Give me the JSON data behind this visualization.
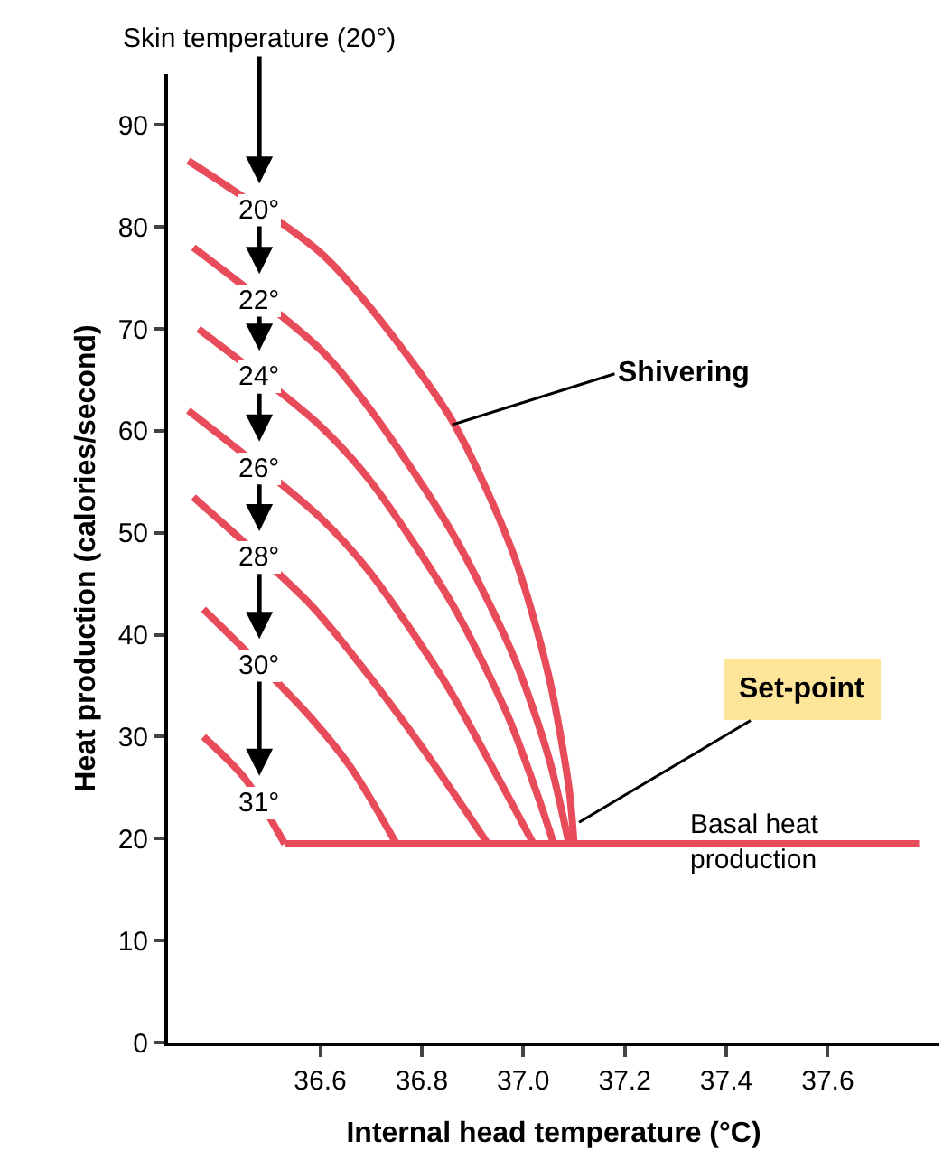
{
  "chart_data": {
    "type": "line",
    "xlabel": "Internal head temperature (°C)",
    "ylabel": "Heat production (calories/second)",
    "xlim": [
      36.3,
      37.82
    ],
    "ylim": [
      0,
      95
    ],
    "xticks": [
      36.6,
      36.8,
      {
        "value": 37.0,
        "label": "37.0"
      },
      37.2,
      37.4,
      37.6
    ],
    "yticks": [
      0,
      10,
      20,
      30,
      40,
      50,
      60,
      70,
      80,
      90
    ],
    "legend": false,
    "marker": "none",
    "line_style": "solid",
    "series": [
      {
        "name": "20°",
        "color": "#e84b5a",
        "x": [
          36.34,
          36.6,
          36.7,
          36.86,
          36.98,
          37.05,
          37.09,
          37.1
        ],
        "values": [
          86.5,
          77.5,
          72,
          61,
          48,
          36,
          25,
          19.5
        ]
      },
      {
        "name": "22°",
        "color": "#e84b5a",
        "x": [
          36.35,
          36.6,
          36.7,
          36.86,
          36.98,
          37.05,
          37.09
        ],
        "values": [
          78,
          68,
          62,
          50,
          38,
          28,
          19.5
        ]
      },
      {
        "name": "24°",
        "color": "#e84b5a",
        "x": [
          36.36,
          36.6,
          36.7,
          36.86,
          36.97,
          37.03,
          37.06
        ],
        "values": [
          70,
          60.5,
          55,
          43,
          32,
          24,
          19.5
        ]
      },
      {
        "name": "26°",
        "color": "#e84b5a",
        "x": [
          36.34,
          36.6,
          36.7,
          36.85,
          36.95,
          37.02
        ],
        "values": [
          62,
          51.5,
          46,
          35,
          26,
          19.5
        ]
      },
      {
        "name": "28°",
        "color": "#e84b5a",
        "x": [
          36.35,
          36.58,
          36.68,
          36.8,
          36.93
        ],
        "values": [
          53.5,
          43,
          37,
          29,
          19.5
        ]
      },
      {
        "name": "30°",
        "color": "#e84b5a",
        "x": [
          36.37,
          36.57,
          36.66,
          36.75
        ],
        "values": [
          42.5,
          32.5,
          27,
          19.5
        ]
      },
      {
        "name": "31°",
        "color": "#e84b5a",
        "x": [
          36.37,
          36.45,
          36.53
        ],
        "values": [
          30,
          26,
          19.5
        ]
      },
      {
        "name": "Basal heat\nproduction",
        "color": "#e84b5a",
        "x": [
          36.53,
          37.78
        ],
        "values": [
          19.5,
          19.5
        ]
      }
    ],
    "annotations": [
      "Skin temperature (20°)",
      {
        "text": "Shivering",
        "x": 36.86,
        "y": 60.6
      },
      {
        "text": "Set-point",
        "x": 37.11,
        "y": 21.6
      }
    ]
  }
}
